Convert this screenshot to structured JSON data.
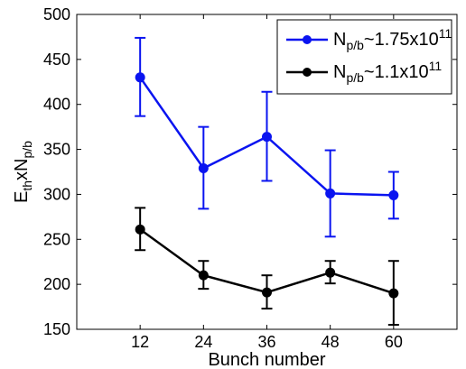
{
  "chart_data": {
    "type": "line",
    "xlabel": "Bunch number",
    "ylabel": {
      "main": "E",
      "sub1": "th",
      "mid": "xN",
      "sub2": "p/b"
    },
    "x": [
      12,
      24,
      36,
      48,
      60
    ],
    "xlim": [
      0,
      72
    ],
    "ylim": [
      150,
      500
    ],
    "x_ticks": [
      "12",
      "24",
      "36",
      "48",
      "60"
    ],
    "y_ticks": [
      "150",
      "200",
      "250",
      "300",
      "350",
      "400",
      "450",
      "500"
    ],
    "grid": false,
    "legend_position": "top-right",
    "series": [
      {
        "name": {
          "base": "N",
          "sub": "p/b",
          "rest": "~1.75x10",
          "sup": "11"
        },
        "color": "#0a14f0",
        "values": [
          430,
          329,
          364,
          301,
          299
        ],
        "err_low": [
          387,
          284,
          315,
          253,
          273
        ],
        "err_high": [
          474,
          375,
          414,
          349,
          325
        ]
      },
      {
        "name": {
          "base": "N",
          "sub": "p/b",
          "rest": "~1.1x10",
          "sup": "11"
        },
        "color": "#000000",
        "values": [
          261,
          210,
          191,
          213,
          190
        ],
        "err_low": [
          238,
          195,
          173,
          201,
          155
        ],
        "err_high": [
          285,
          226,
          210,
          226,
          226
        ]
      }
    ]
  }
}
